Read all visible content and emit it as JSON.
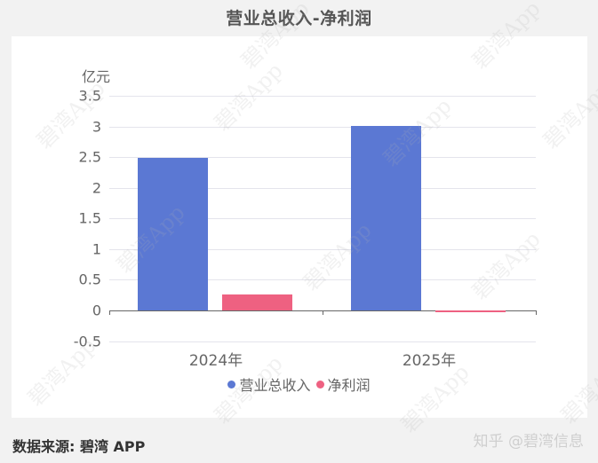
{
  "header": {
    "title": "营业总收入-净利润"
  },
  "chart_data": {
    "type": "bar",
    "title": "营业总收入-净利润",
    "ylabel": "亿元",
    "xlabel": "",
    "categories": [
      "2024年",
      "2025年"
    ],
    "series": [
      {
        "name": "营业总收入",
        "color": "#5b78d3",
        "values": [
          2.49,
          3.01
        ]
      },
      {
        "name": "净利润",
        "color": "#ee6181",
        "values": [
          0.26,
          -0.02
        ]
      }
    ],
    "ylim": [
      -0.5,
      3.5
    ],
    "yticks": [
      "3.5",
      "3",
      "2.5",
      "2",
      "1.5",
      "1",
      "0.5",
      "0",
      "-0.5"
    ],
    "grid": true,
    "legend_position": "bottom"
  },
  "footer": {
    "source": "数据来源: 碧湾 APP",
    "credit": "知乎 @碧湾信息"
  },
  "watermark": "碧湾App"
}
